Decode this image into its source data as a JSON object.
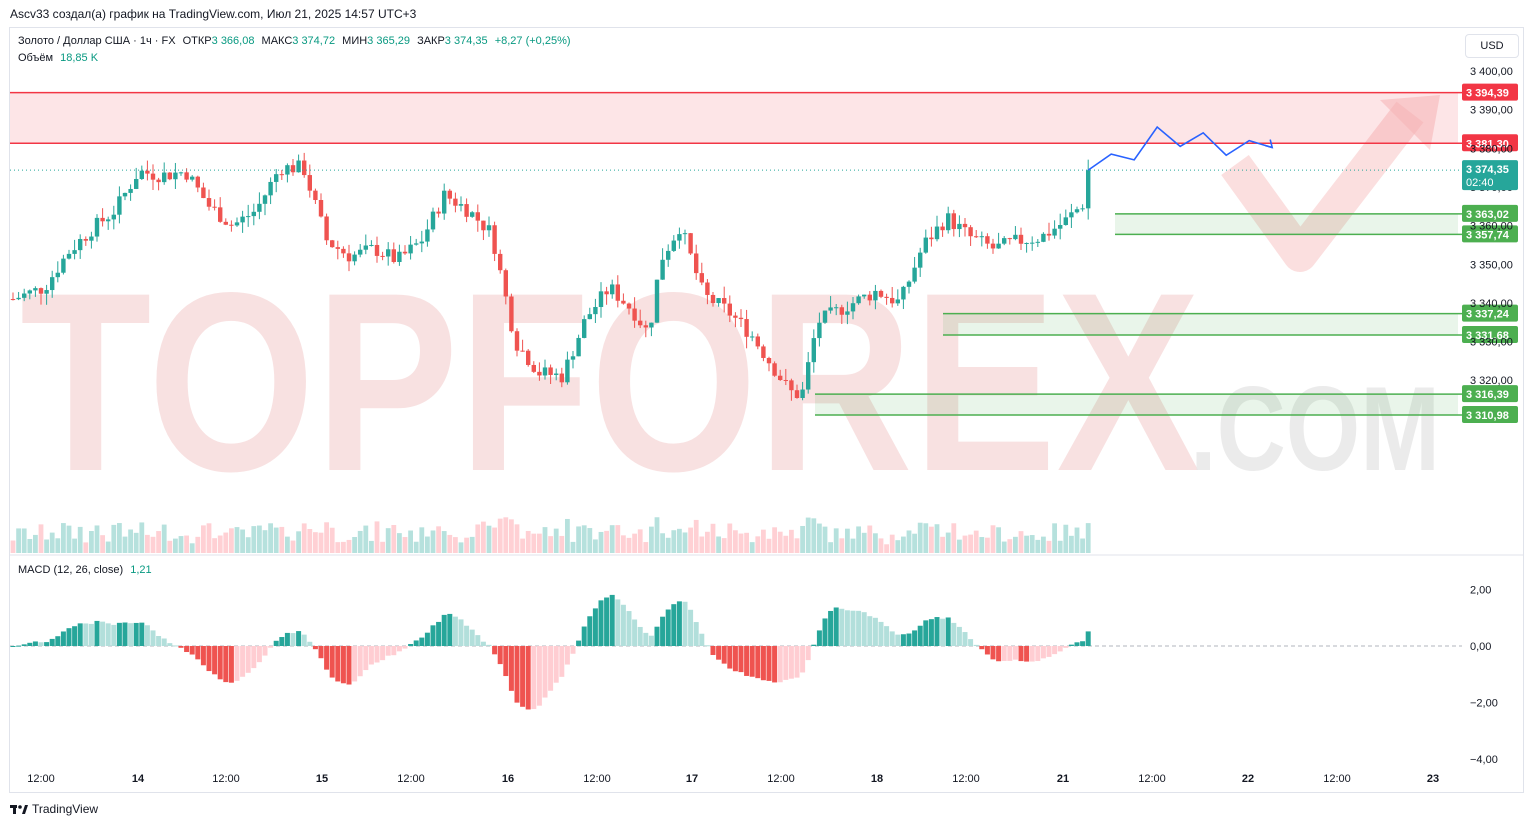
{
  "header": {
    "attribution": "Ascv33 создал(а) график на TradingView.com, Июл 21, 2025 14:57 UTC+3"
  },
  "legend": {
    "symbol": "Золото / Доллар США · 1ч · FX",
    "open_label": "ОТКР",
    "open": "3 366,08",
    "high_label": "МАКС",
    "high": "3 374,72",
    "low_label": "МИН",
    "low": "3 365,29",
    "close_label": "ЗАКР",
    "close": "3 374,35",
    "change": "+8,27 (+0,25%)",
    "volume_label": "Объём",
    "volume": "18,85 K",
    "macd_label": "MACD (12, 26, close)",
    "macd_value": "1,21"
  },
  "currency_button": "USD",
  "footer": {
    "brand": "TradingView"
  },
  "watermark": {
    "text": "TOPFOREX",
    "subtext": ".COM"
  },
  "colors": {
    "up": "#26a69a",
    "down": "#ef5350",
    "up_light": "#b2dfdb",
    "down_light": "#ffcdd2",
    "resistance": "#f23645",
    "support": "#4caf50",
    "forecast": "#2962ff"
  },
  "chart_data": [
    {
      "type": "candlestick",
      "y_axis_ticks": [
        3320,
        3330,
        3340,
        3350,
        3360,
        3370,
        3380,
        3390,
        3400
      ],
      "y_tick_labels": [
        "3 320,00",
        "3 330,00",
        "3 340,00",
        "3 350,00",
        "3 360,00",
        "3 370,00",
        "3 380,00",
        "3 390,00",
        "3 400,00"
      ],
      "ylim": [
        3297,
        3405
      ],
      "x_tick_labels": [
        "12:00",
        "14",
        "12:00",
        "15",
        "12:00",
        "16",
        "12:00",
        "17",
        "12:00",
        "18",
        "12:00",
        "21",
        "12:00",
        "22",
        "12:00",
        "23"
      ],
      "last_price": {
        "value": 3374.35,
        "label": "3 374,35",
        "countdown": "02:40"
      },
      "levels": [
        {
          "value": 3394.39,
          "label": "3 394,39",
          "kind": "resistance"
        },
        {
          "value": 3381.3,
          "label": "3 381,30",
          "kind": "resistance"
        },
        {
          "value": 3363.02,
          "label": "3 363,02",
          "kind": "support"
        },
        {
          "value": 3357.74,
          "label": "3 357,74",
          "kind": "support"
        },
        {
          "value": 3337.24,
          "label": "3 337,24",
          "kind": "support"
        },
        {
          "value": 3331.68,
          "label": "3 331,68",
          "kind": "support"
        },
        {
          "value": 3316.39,
          "label": "3 316,39",
          "kind": "support"
        },
        {
          "value": 3310.98,
          "label": "3 310,98",
          "kind": "support"
        }
      ],
      "zones": [
        {
          "top": 3394.39,
          "bottom": 3381.3,
          "kind": "resistance"
        },
        {
          "top": 3363.02,
          "bottom": 3357.74,
          "kind": "support"
        },
        {
          "top": 3337.24,
          "bottom": 3331.68,
          "kind": "support"
        },
        {
          "top": 3316.39,
          "bottom": 3310.98,
          "kind": "support"
        }
      ],
      "forecast_path": [
        3374.35,
        3378.5,
        3377,
        3385.5,
        3380.5,
        3384,
        3378.2,
        3382,
        3380.2
      ]
    },
    {
      "type": "bar",
      "name": "MACD histogram",
      "y_axis_ticks": [
        2,
        0,
        -2,
        -4
      ],
      "y_tick_labels": [
        "2,00",
        "0,00",
        "−2,00",
        "−4,00"
      ],
      "ylim": [
        -4.3,
        2.6
      ]
    }
  ]
}
